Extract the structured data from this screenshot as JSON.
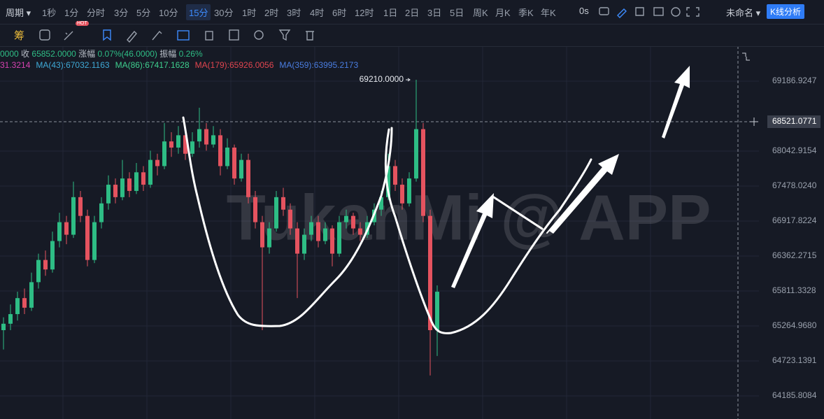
{
  "toolbar": {
    "period_label": "周期",
    "periods": [
      "1秒",
      "1分",
      "分时",
      "3分",
      "5分",
      "10分",
      "15分",
      "30分",
      "1时",
      "2时",
      "3时",
      "4时",
      "6时",
      "12时",
      "1日",
      "2日",
      "3日",
      "5日",
      "周K",
      "月K",
      "季K",
      "年K"
    ],
    "active_period": 6,
    "refresh": "0s",
    "layout_name": "未命名",
    "analysis_button": "K线分析",
    "hot_badge": "HOT",
    "chip_icon": "筹"
  },
  "info": {
    "partial_open": "0000",
    "close_label": "收",
    "close": "65852.0000",
    "change_label": "涨幅",
    "change": "0.07%(46.0000)",
    "amplitude_label": "振幅",
    "amplitude": "0.26%"
  },
  "ma_legend": [
    {
      "text": "31.3214",
      "color": "#d642b0"
    },
    {
      "text": "MA(43):67032.1163",
      "color": "#3fa9d6"
    },
    {
      "text": "MA(86):67417.1628",
      "color": "#3ecf8e"
    },
    {
      "text": "MA(179):65926.0056",
      "color": "#e0454f"
    },
    {
      "text": "MA(359):63995.2173",
      "color": "#4a7de0"
    }
  ],
  "watermark": "TukanMi @ APP",
  "chart_data": {
    "type": "candlestick",
    "log_scale": true,
    "up_color": "#2ebd85",
    "down_color": "#e5535f",
    "ylim": [
      63834,
      69766
    ],
    "yticks": [
      69186.9247,
      68042.9154,
      {
        "value": 67478.024,
        "label": "67478.0240"
      },
      66917.8224,
      66362.2715,
      65811.3328,
      {
        "value": 65264.968,
        "label": "65264.9680"
      },
      64723.1391,
      64185.8084
    ],
    "current_price": 68521.0771,
    "peak_annotation": {
      "value": 69210,
      "label": "69210.0000"
    },
    "candles": [
      [
        65200,
        65400,
        64900,
        65300
      ],
      [
        65300,
        65600,
        65200,
        65450
      ],
      [
        65450,
        65800,
        65350,
        65700
      ],
      [
        65700,
        65850,
        65450,
        65550
      ],
      [
        65550,
        66100,
        65500,
        65950
      ],
      [
        65950,
        66400,
        65850,
        66300
      ],
      [
        66300,
        66450,
        66050,
        66150
      ],
      [
        66150,
        66750,
        66100,
        66600
      ],
      [
        66600,
        67050,
        66500,
        66900
      ],
      [
        66900,
        67000,
        66550,
        66700
      ],
      [
        66700,
        67550,
        66650,
        67300
      ],
      [
        67300,
        67400,
        66900,
        67000
      ],
      [
        67000,
        67100,
        66200,
        66300
      ],
      [
        66300,
        67000,
        66250,
        66900
      ],
      [
        66900,
        67300,
        66800,
        67200
      ],
      [
        67200,
        67650,
        67100,
        67500
      ],
      [
        67500,
        67600,
        67200,
        67300
      ],
      [
        67300,
        67900,
        67250,
        67600
      ],
      [
        67600,
        67700,
        67300,
        67400
      ],
      [
        67400,
        67850,
        67350,
        67700
      ],
      [
        67700,
        67800,
        67400,
        67500
      ],
      [
        67500,
        68050,
        67450,
        67900
      ],
      [
        67900,
        68000,
        67650,
        67800
      ],
      [
        67800,
        68500,
        67750,
        68200
      ],
      [
        68200,
        68350,
        67950,
        68100
      ],
      [
        68100,
        68450,
        68000,
        68300
      ],
      [
        68300,
        68400,
        67900,
        68000
      ],
      [
        68000,
        68350,
        67950,
        68200
      ],
      [
        68200,
        68750,
        68100,
        68400
      ],
      [
        68400,
        68500,
        68050,
        68150
      ],
      [
        68150,
        68450,
        68100,
        68300
      ],
      [
        68300,
        68400,
        67650,
        67800
      ],
      [
        67800,
        68250,
        67750,
        68100
      ],
      [
        68100,
        68150,
        67500,
        67600
      ],
      [
        67600,
        68000,
        67550,
        67900
      ],
      [
        67900,
        68000,
        67200,
        67300
      ],
      [
        67300,
        67400,
        66800,
        66900
      ],
      [
        66900,
        67000,
        65200,
        66500
      ],
      [
        66500,
        66900,
        66400,
        66800
      ],
      [
        66800,
        67400,
        66750,
        67300
      ],
      [
        67300,
        67450,
        67000,
        67100
      ],
      [
        67100,
        67200,
        66700,
        66800
      ],
      [
        66800,
        66900,
        65700,
        66400
      ],
      [
        66400,
        66800,
        66300,
        66700
      ],
      [
        66700,
        67000,
        66600,
        66900
      ],
      [
        66900,
        67000,
        66500,
        66600
      ],
      [
        66600,
        66900,
        66550,
        66800
      ],
      [
        66800,
        66850,
        66200,
        66400
      ],
      [
        66400,
        67000,
        66350,
        66900
      ],
      [
        66900,
        67100,
        66800,
        67000
      ],
      [
        67000,
        67050,
        66700,
        66800
      ],
      [
        66800,
        66900,
        66600,
        66700
      ],
      [
        66700,
        67000,
        66650,
        66900
      ],
      [
        66900,
        67200,
        66850,
        67100
      ],
      [
        67100,
        67400,
        67000,
        67300
      ],
      [
        67300,
        68000,
        67250,
        67800
      ],
      [
        67800,
        67900,
        67400,
        67500
      ],
      [
        67500,
        67600,
        67100,
        67200
      ],
      [
        67200,
        67700,
        67150,
        67600
      ],
      [
        67600,
        69210,
        67550,
        68400
      ],
      [
        68400,
        68500,
        66900,
        67000
      ],
      [
        67000,
        67100,
        64500,
        65200
      ],
      [
        65200,
        65900,
        64800,
        65800
      ]
    ]
  }
}
